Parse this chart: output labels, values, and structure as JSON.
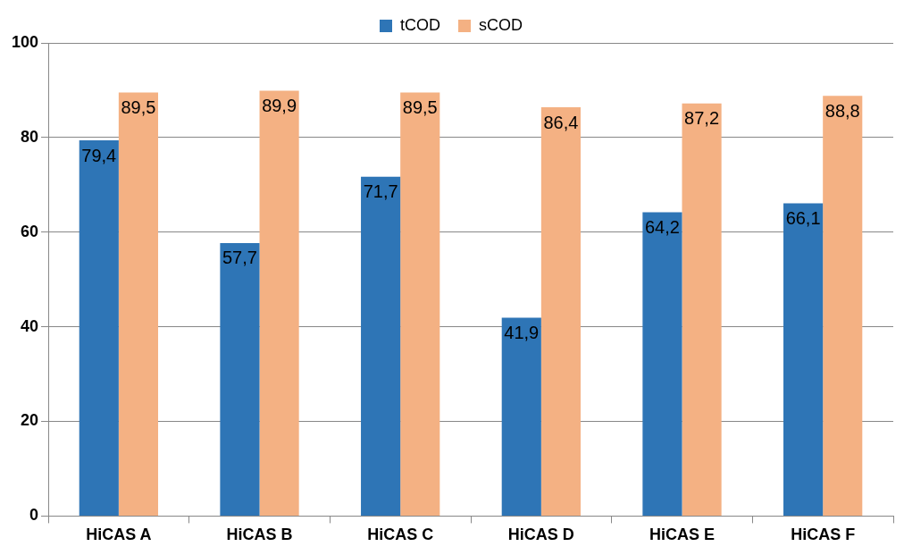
{
  "chart_data": {
    "type": "bar",
    "categories": [
      "HiCAS A",
      "HiCAS B",
      "HiCAS C",
      "HiCAS D",
      "HiCAS E",
      "HiCAS F"
    ],
    "series": [
      {
        "name": "tCOD",
        "color": "#2e75b6",
        "values": [
          79.4,
          57.7,
          71.7,
          41.9,
          64.2,
          66.1
        ],
        "value_labels": [
          "79,4",
          "57,7",
          "71,7",
          "41,9",
          "64,2",
          "66,1"
        ]
      },
      {
        "name": "sCOD",
        "color": "#f4b183",
        "values": [
          89.5,
          89.9,
          89.5,
          86.4,
          87.2,
          88.8
        ],
        "value_labels": [
          "89,5",
          "89,9",
          "89,5",
          "86,4",
          "87,2",
          "88,8"
        ]
      }
    ],
    "ylim": [
      0,
      100
    ],
    "yticks": [
      0,
      20,
      40,
      60,
      80,
      100
    ],
    "grid": "y",
    "legend": "top"
  }
}
